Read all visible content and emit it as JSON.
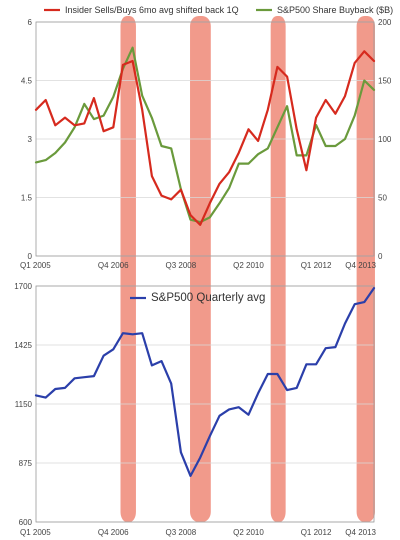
{
  "chart_data": [
    {
      "type": "line",
      "title": "",
      "xlabel": "",
      "ylabel": "",
      "x_tick_labels": [
        "Q1 2005",
        "Q4 2006",
        "Q3 2008",
        "Q2 2010",
        "Q1 2012",
        "Q4 2013"
      ],
      "left_axis": {
        "ylim": [
          0,
          6
        ],
        "ticks": [
          "0",
          "1.5",
          "3",
          "4.5",
          "6"
        ]
      },
      "right_axis": {
        "ylim": [
          0,
          200
        ],
        "ticks": [
          "0",
          "50",
          "100",
          "150",
          "200"
        ]
      },
      "grid": "horizontal",
      "legend_position": "top",
      "series": [
        {
          "name": "Insider Sells/Buys 6mo avg shifted back 1Q",
          "axis": "left",
          "color": "#d62a1e",
          "values": [
            3.75,
            4.0,
            3.35,
            3.55,
            3.35,
            3.4,
            4.05,
            3.2,
            3.3,
            4.9,
            5.0,
            3.75,
            2.05,
            1.55,
            1.45,
            1.7,
            1.05,
            0.8,
            1.35,
            1.85,
            2.15,
            2.65,
            3.25,
            2.95,
            3.75,
            4.85,
            4.6,
            3.25,
            2.2,
            3.55,
            4.0,
            3.65,
            4.1,
            4.95,
            5.25,
            5.0
          ]
        },
        {
          "name": "S&P500 Share Buyback ($B)",
          "axis": "right",
          "color": "#6a9a3c",
          "values": [
            80,
            82,
            88,
            97,
            110,
            130,
            117,
            120,
            136,
            160,
            178,
            137,
            118,
            94,
            92,
            57,
            31,
            29,
            33,
            45,
            58,
            79,
            79,
            87,
            92,
            110,
            128,
            86,
            86,
            112,
            94,
            94,
            100,
            120,
            150,
            142
          ]
        }
      ]
    },
    {
      "type": "line",
      "title": "",
      "xlabel": "",
      "ylabel": "",
      "x_tick_labels": [
        "Q1 2005",
        "Q4 2006",
        "Q3 2008",
        "Q2 2010",
        "Q1 2012",
        "Q4 2013"
      ],
      "ylim": [
        600,
        1700
      ],
      "y_ticks": [
        "600",
        "875",
        "1150",
        "1425",
        "1700"
      ],
      "grid": "horizontal",
      "legend_position": "top",
      "series": [
        {
          "name": "S&P500 Quarterly avg",
          "color": "#2b3faa",
          "values": [
            1190,
            1180,
            1220,
            1225,
            1270,
            1275,
            1280,
            1375,
            1405,
            1480,
            1475,
            1480,
            1330,
            1350,
            1245,
            925,
            815,
            900,
            1000,
            1095,
            1125,
            1135,
            1100,
            1200,
            1290,
            1290,
            1215,
            1225,
            1335,
            1335,
            1410,
            1415,
            1525,
            1615,
            1625,
            1690
          ]
        }
      ]
    }
  ],
  "highlight_bands": [
    {
      "from_index": 8.75,
      "to_index": 10.35
    },
    {
      "from_index": 15.95,
      "to_index": 18.1
    },
    {
      "from_index": 24.3,
      "to_index": 25.85
    },
    {
      "from_index": 33.2,
      "to_index": 35.1
    }
  ],
  "band_color": "#ee8877"
}
